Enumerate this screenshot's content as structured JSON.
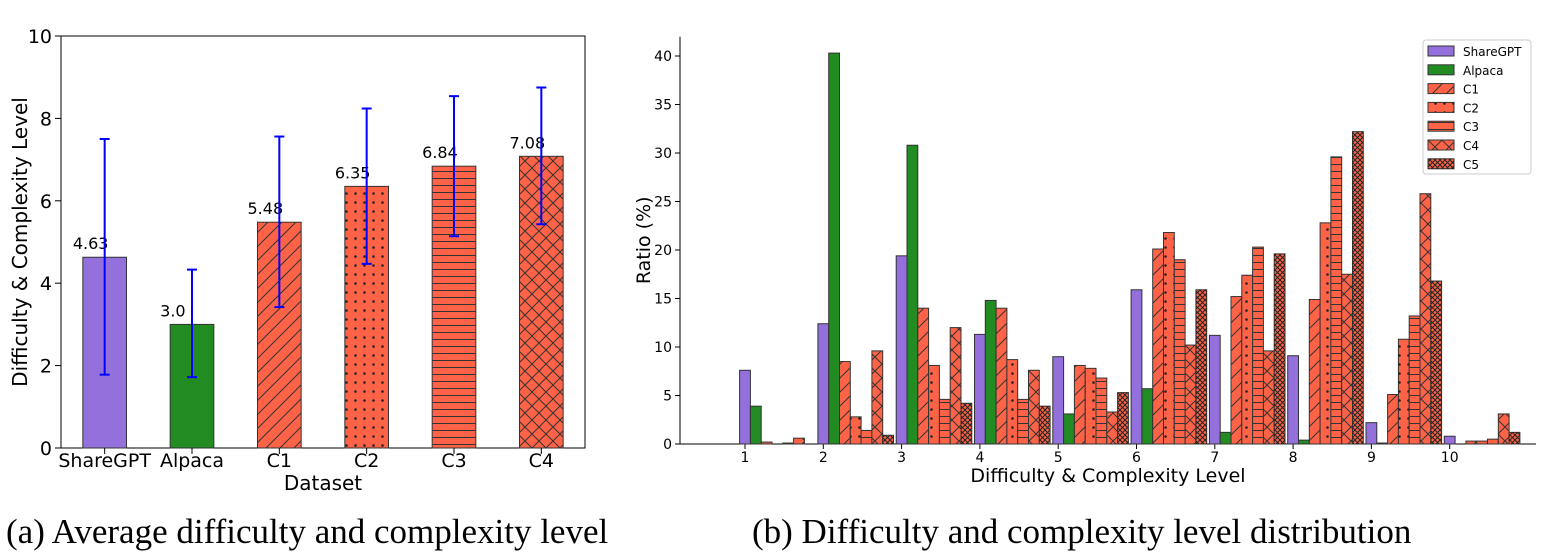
{
  "colors": {
    "sharegpt": "#9370DB",
    "alpaca": "#228B22",
    "c": "#FF6347",
    "errorbar": "#0000FF",
    "edge": "#333333"
  },
  "captions": {
    "a": "(a) Average difficulty and complexity level",
    "b": "(b) Difficulty and complexity level distribution"
  },
  "chart_data": [
    {
      "type": "bar",
      "xlabel": "Dataset",
      "ylabel": "Difficulty & Complexity Level",
      "ylim": [
        0,
        10
      ],
      "yticks": [
        "0",
        "2",
        "4",
        "6",
        "8",
        "10"
      ],
      "categories": [
        "ShareGPT",
        "Alpaca",
        "C1",
        "C2",
        "C3",
        "C4"
      ],
      "values": [
        4.63,
        3.0,
        5.48,
        6.35,
        6.84,
        7.08
      ],
      "value_labels": [
        "4.63",
        "3.0",
        "5.48",
        "6.35",
        "6.84",
        "7.08"
      ],
      "error_low": [
        1.78,
        1.72,
        3.42,
        4.47,
        5.14,
        5.43
      ],
      "error_high": [
        7.5,
        4.33,
        7.56,
        8.24,
        8.54,
        8.75
      ],
      "hatches": [
        "none",
        "none",
        "diag",
        "dots",
        "hlines",
        "cross"
      ],
      "grid": false
    },
    {
      "type": "bar",
      "xlabel": "Difficulty & Complexity Level",
      "ylabel": "Ratio (%)",
      "ylim": [
        0,
        42
      ],
      "yticks": [
        "0",
        "5",
        "10",
        "15",
        "20",
        "25",
        "30",
        "35",
        "40"
      ],
      "categories": [
        "1",
        "2",
        "3",
        "4",
        "5",
        "6",
        "7",
        "8",
        "9",
        "10"
      ],
      "legend_position": "top-right",
      "grid": false,
      "series": [
        {
          "name": "ShareGPT",
          "hatch": "none",
          "values": [
            7.6,
            12.4,
            19.4,
            11.3,
            9.0,
            15.9,
            11.2,
            9.1,
            2.2,
            0.8
          ]
        },
        {
          "name": "Alpaca",
          "hatch": "none",
          "values": [
            3.9,
            40.3,
            30.8,
            14.8,
            3.1,
            5.7,
            1.2,
            0.4,
            0.1,
            0.0
          ]
        },
        {
          "name": "C1",
          "hatch": "diag",
          "values": [
            0.2,
            8.5,
            14.0,
            14.0,
            8.1,
            20.1,
            15.2,
            14.9,
            5.1,
            0.3
          ]
        },
        {
          "name": "C2",
          "hatch": "dots",
          "values": [
            0.0,
            2.8,
            8.1,
            8.7,
            7.8,
            21.8,
            17.4,
            22.8,
            10.8,
            0.3
          ]
        },
        {
          "name": "C3",
          "hatch": "hlines",
          "values": [
            0.1,
            1.4,
            4.6,
            4.6,
            6.8,
            19.0,
            20.3,
            29.6,
            13.2,
            0.5
          ]
        },
        {
          "name": "C4",
          "hatch": "cross",
          "values": [
            0.6,
            9.6,
            12.0,
            7.6,
            3.3,
            10.2,
            9.6,
            17.5,
            25.8,
            3.1
          ]
        },
        {
          "name": "C5",
          "hatch": "dense",
          "values": [
            0.0,
            0.9,
            4.2,
            3.9,
            5.3,
            15.9,
            19.6,
            32.2,
            16.8,
            1.2
          ]
        }
      ]
    }
  ]
}
